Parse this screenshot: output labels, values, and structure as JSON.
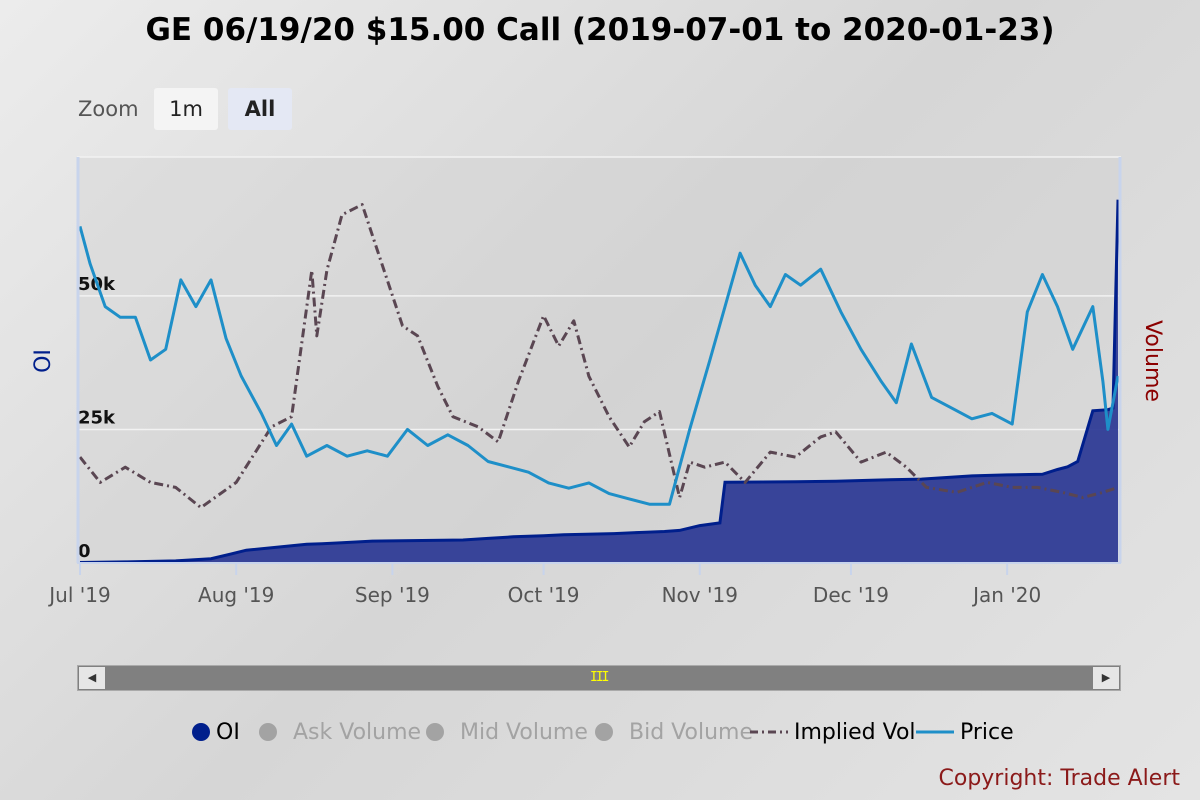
{
  "title": "GE 06/19/20 $15.00 Call (2019-07-01 to 2020-01-23)",
  "zoom": {
    "label": "Zoom",
    "buttons": [
      "1m",
      "All"
    ],
    "selected": "All"
  },
  "navigator": {
    "grip": "III"
  },
  "legend": [
    {
      "name": "OI",
      "visible": true
    },
    {
      "name": "Ask Volume",
      "visible": false
    },
    {
      "name": "Mid Volume",
      "visible": false
    },
    {
      "name": "Bid Volume",
      "visible": false
    },
    {
      "name": "Implied Vol",
      "visible": true
    },
    {
      "name": "Price",
      "visible": true
    }
  ],
  "copyright": "Copyright: Trade Alert",
  "colors": {
    "oi": "#001f8c",
    "oi_fill": "#2f3c96",
    "price": "#1e8fc8",
    "iv": "#5a4652",
    "volume_axis": "#8b0000",
    "oi_axis": "#001f8c"
  },
  "chart_data": {
    "type": "line",
    "title": "GE 06/19/20 $15.00 Call (2019-07-01 to 2020-01-23)",
    "x_range": [
      "2019-07-01",
      "2020-01-23"
    ],
    "x_ticks": [
      {
        "label": "Jul '19",
        "date": "2019-07-01"
      },
      {
        "label": "Aug '19",
        "date": "2019-08-01"
      },
      {
        "label": "Sep '19",
        "date": "2019-09-01"
      },
      {
        "label": "Oct '19",
        "date": "2019-10-01"
      },
      {
        "label": "Nov '19",
        "date": "2019-11-01"
      },
      {
        "label": "Dec '19",
        "date": "2019-12-01"
      },
      {
        "label": "Jan '20",
        "date": "2020-01-01"
      }
    ],
    "y_left": {
      "label": "OI",
      "ticks": [
        0,
        25000,
        50000
      ],
      "tick_labels": [
        "0",
        "25k",
        "50k"
      ],
      "range": [
        0,
        76000
      ]
    },
    "y_right": {
      "label": "Volume"
    },
    "series": [
      {
        "name": "OI",
        "type": "area",
        "axis": "left",
        "x": [
          "2019-07-01",
          "2019-07-10",
          "2019-07-20",
          "2019-07-27",
          "2019-07-31",
          "2019-08-03",
          "2019-08-15",
          "2019-08-18",
          "2019-08-22",
          "2019-08-28",
          "2019-09-15",
          "2019-09-20",
          "2019-09-25",
          "2019-10-01",
          "2019-10-05",
          "2019-10-15",
          "2019-10-20",
          "2019-10-25",
          "2019-10-28",
          "2019-11-01",
          "2019-11-05",
          "2019-11-06",
          "2019-11-20",
          "2019-11-28",
          "2019-12-05",
          "2019-12-15",
          "2019-12-20",
          "2019-12-25",
          "2020-01-01",
          "2020-01-08",
          "2020-01-11",
          "2020-01-13",
          "2020-01-15",
          "2020-01-18",
          "2020-01-21",
          "2020-01-22",
          "2020-01-23"
        ],
        "values": [
          100,
          200,
          400,
          800,
          1700,
          2400,
          3500,
          3600,
          3800,
          4100,
          4300,
          4600,
          4900,
          5100,
          5300,
          5500,
          5700,
          5900,
          6100,
          7000,
          7500,
          15100,
          15200,
          15300,
          15500,
          15700,
          16000,
          16300,
          16500,
          16600,
          17500,
          18000,
          19000,
          28500,
          28700,
          29000,
          68000
        ]
      },
      {
        "name": "Implied Vol",
        "type": "line",
        "axis": "right",
        "x": [
          "2019-07-01",
          "2019-07-05",
          "2019-07-10",
          "2019-07-15",
          "2019-07-20",
          "2019-07-25",
          "2019-08-01",
          "2019-08-08",
          "2019-08-12",
          "2019-08-16",
          "2019-08-17",
          "2019-08-19",
          "2019-08-22",
          "2019-08-26",
          "2019-08-29",
          "2019-09-03",
          "2019-09-06",
          "2019-09-10",
          "2019-09-13",
          "2019-09-18",
          "2019-09-22",
          "2019-09-26",
          "2019-10-01",
          "2019-10-04",
          "2019-10-07",
          "2019-10-10",
          "2019-10-14",
          "2019-10-18",
          "2019-10-21",
          "2019-10-24",
          "2019-10-28",
          "2019-10-30",
          "2019-11-02",
          "2019-11-06",
          "2019-11-10",
          "2019-11-15",
          "2019-11-20",
          "2019-11-25",
          "2019-11-28",
          "2019-12-03",
          "2019-12-08",
          "2019-12-12",
          "2019-12-16",
          "2019-12-22",
          "2019-12-28",
          "2020-01-02",
          "2020-01-07",
          "2020-01-12",
          "2020-01-16",
          "2020-01-20",
          "2020-01-23"
        ],
        "values": [
          18,
          13,
          16,
          13,
          12,
          8,
          13,
          24,
          26,
          55,
          42,
          55,
          66,
          68,
          59,
          44,
          42,
          32,
          26,
          24,
          21,
          33,
          46,
          40,
          45,
          34,
          26,
          20,
          25,
          27,
          10,
          17,
          16,
          17,
          13,
          19,
          18,
          22,
          23,
          17,
          19,
          16,
          12,
          11,
          13,
          12,
          12,
          11,
          10,
          11,
          12
        ]
      },
      {
        "name": "Price",
        "type": "line",
        "axis": "left",
        "x": [
          "2019-07-01",
          "2019-07-03",
          "2019-07-06",
          "2019-07-09",
          "2019-07-12",
          "2019-07-15",
          "2019-07-18",
          "2019-07-21",
          "2019-07-24",
          "2019-07-27",
          "2019-07-30",
          "2019-08-02",
          "2019-08-06",
          "2019-08-09",
          "2019-08-12",
          "2019-08-15",
          "2019-08-19",
          "2019-08-23",
          "2019-08-27",
          "2019-08-31",
          "2019-09-04",
          "2019-09-08",
          "2019-09-12",
          "2019-09-16",
          "2019-09-20",
          "2019-09-24",
          "2019-09-28",
          "2019-10-02",
          "2019-10-06",
          "2019-10-10",
          "2019-10-14",
          "2019-10-18",
          "2019-10-22",
          "2019-10-26",
          "2019-10-30",
          "2019-11-03",
          "2019-11-06",
          "2019-11-09",
          "2019-11-12",
          "2019-11-15",
          "2019-11-18",
          "2019-11-21",
          "2019-11-25",
          "2019-11-29",
          "2019-12-03",
          "2019-12-07",
          "2019-12-10",
          "2019-12-13",
          "2019-12-17",
          "2019-12-21",
          "2019-12-25",
          "2019-12-29",
          "2020-01-02",
          "2020-01-05",
          "2020-01-08",
          "2020-01-11",
          "2020-01-14",
          "2020-01-18",
          "2020-01-20",
          "2020-01-21",
          "2020-01-23"
        ],
        "values": [
          63,
          56,
          48,
          46,
          46,
          38,
          40,
          53,
          48,
          53,
          42,
          35,
          28,
          22,
          26,
          20,
          22,
          20,
          21,
          20,
          25,
          22,
          24,
          22,
          19,
          18,
          17,
          15,
          14,
          15,
          13,
          12,
          11,
          11,
          25,
          38,
          48,
          58,
          52,
          48,
          54,
          52,
          55,
          47,
          40,
          34,
          30,
          41,
          31,
          29,
          27,
          28,
          26,
          47,
          54,
          48,
          40,
          48,
          34,
          25,
          35
        ]
      }
    ]
  }
}
